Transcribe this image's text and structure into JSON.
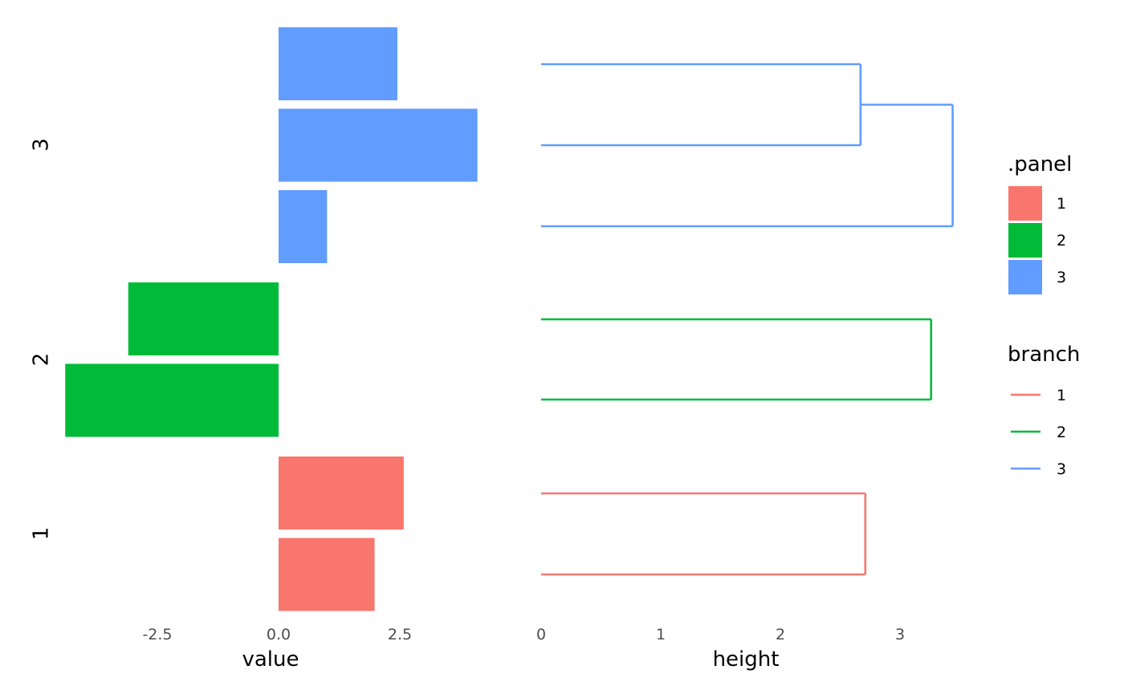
{
  "chart_data": [
    {
      "type": "bar",
      "orientation": "horizontal",
      "xlabel": "value",
      "xlim": [
        -4.4,
        4.1
      ],
      "x_ticks": [
        "-2.5",
        "0.0",
        "2.5"
      ],
      "panels": [
        {
          "label": "3",
          "values": [
            2.45,
            4.1,
            1.0
          ],
          "color": "#619CFF"
        },
        {
          "label": "2",
          "values": [
            -3.1,
            -4.4
          ],
          "color": "#00BA38"
        },
        {
          "label": "1",
          "values": [
            2.58,
            1.98
          ],
          "color": "#F8766D"
        }
      ]
    },
    {
      "type": "dendrogram",
      "xlabel": "height",
      "xlim": [
        0,
        3.45
      ],
      "x_ticks": [
        "0",
        "1",
        "2",
        "3"
      ],
      "branches": [
        {
          "branch": "3",
          "color": "#619CFF",
          "leaves": 3,
          "merges": [
            {
              "height": 2.67,
              "left": 1,
              "right": 2
            },
            {
              "height": 3.44,
              "left": "m0",
              "right": 3
            }
          ]
        },
        {
          "branch": "2",
          "color": "#00BA38",
          "leaves": 2,
          "merges": [
            {
              "height": 3.26,
              "left": 1,
              "right": 2
            }
          ]
        },
        {
          "branch": "1",
          "color": "#F8766D",
          "leaves": 2,
          "merges": [
            {
              "height": 2.71,
              "left": 1,
              "right": 2
            }
          ]
        }
      ]
    }
  ],
  "legends": [
    {
      "title": ".panel",
      "kind": "fill",
      "items": [
        {
          "label": "1",
          "color": "#F8766D"
        },
        {
          "label": "2",
          "color": "#00BA38"
        },
        {
          "label": "3",
          "color": "#619CFF"
        }
      ]
    },
    {
      "title": "branch",
      "kind": "line",
      "items": [
        {
          "label": "1",
          "color": "#F8766D"
        },
        {
          "label": "2",
          "color": "#00BA38"
        },
        {
          "label": "3",
          "color": "#619CFF"
        }
      ]
    }
  ]
}
